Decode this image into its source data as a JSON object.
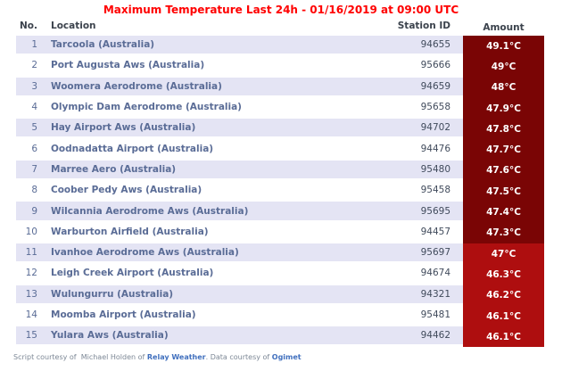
{
  "title": "Maximum Temperature Last 24h - 01/16/2019 at 09:00 UTC",
  "columns": {
    "no": "No.",
    "location": "Location",
    "station_id": "Station ID",
    "amount": "Amount"
  },
  "rows": [
    {
      "no": "1",
      "location": "Tarcoola (Australia)",
      "station_id": "94655",
      "amount": "49.1°C",
      "tier": "dark"
    },
    {
      "no": "2",
      "location": "Port Augusta Aws (Australia)",
      "station_id": "95666",
      "amount": "49°C",
      "tier": "dark"
    },
    {
      "no": "3",
      "location": "Woomera Aerodrome (Australia)",
      "station_id": "94659",
      "amount": "48°C",
      "tier": "dark"
    },
    {
      "no": "4",
      "location": "Olympic Dam Aerodrome (Australia)",
      "station_id": "95658",
      "amount": "47.9°C",
      "tier": "dark"
    },
    {
      "no": "5",
      "location": "Hay Airport Aws (Australia)",
      "station_id": "94702",
      "amount": "47.8°C",
      "tier": "dark"
    },
    {
      "no": "6",
      "location": "Oodnadatta Airport (Australia)",
      "station_id": "94476",
      "amount": "47.7°C",
      "tier": "dark"
    },
    {
      "no": "7",
      "location": "Marree Aero (Australia)",
      "station_id": "95480",
      "amount": "47.6°C",
      "tier": "dark"
    },
    {
      "no": "8",
      "location": "Coober Pedy Aws (Australia)",
      "station_id": "95458",
      "amount": "47.5°C",
      "tier": "dark"
    },
    {
      "no": "9",
      "location": "Wilcannia Aerodrome Aws (Australia)",
      "station_id": "95695",
      "amount": "47.4°C",
      "tier": "dark"
    },
    {
      "no": "10",
      "location": "Warburton Airfield (Australia)",
      "station_id": "94457",
      "amount": "47.3°C",
      "tier": "dark"
    },
    {
      "no": "11",
      "location": "Ivanhoe Aerodrome Aws (Australia)",
      "station_id": "95697",
      "amount": "47°C",
      "tier": "bright"
    },
    {
      "no": "12",
      "location": "Leigh Creek Airport (Australia)",
      "station_id": "94674",
      "amount": "46.3°C",
      "tier": "bright"
    },
    {
      "no": "13",
      "location": "Wulungurru (Australia)",
      "station_id": "94321",
      "amount": "46.2°C",
      "tier": "bright"
    },
    {
      "no": "14",
      "location": "Moomba Airport (Australia)",
      "station_id": "95481",
      "amount": "46.1°C",
      "tier": "bright"
    },
    {
      "no": "15",
      "location": "Yulara Aws (Australia)",
      "station_id": "94462",
      "amount": "46.1°C",
      "tier": "bright"
    }
  ],
  "footer": {
    "prefix": "Script courtesy of  Michael Holden of ",
    "link1": "Relay Weather",
    "middle": ". Data courtesy of ",
    "link2": "Ogimet"
  },
  "colors": {
    "title": "#ff0000",
    "header_text": "#3c434d",
    "stripe": "#e4e4f4",
    "row_number_text": "#5a6c96",
    "location_text": "#5a6c96",
    "station_text": "#414b5c",
    "amount_dark_bg": "#7a0505",
    "amount_bright_bg": "#ae0e0f",
    "amount_text": "#ffffff",
    "footer_text": "#7d8896",
    "footer_link": "#4170be"
  }
}
